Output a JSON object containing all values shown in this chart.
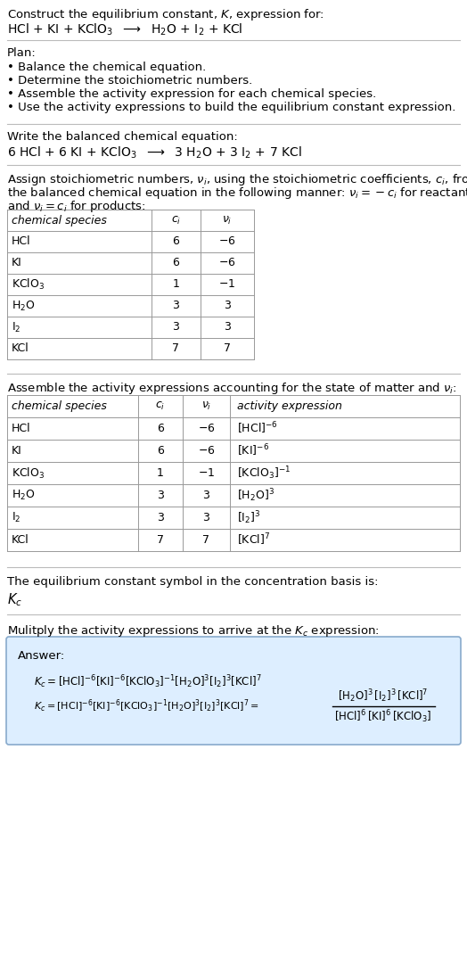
{
  "title_line1": "Construct the equilibrium constant, $K$, expression for:",
  "title_line2": "HCl + KI + KClO$_3$  $\\longrightarrow$  H$_2$O + I$_2$ + KCl",
  "plan_header": "Plan:",
  "plan_items": [
    "• Balance the chemical equation.",
    "• Determine the stoichiometric numbers.",
    "• Assemble the activity expression for each chemical species.",
    "• Use the activity expressions to build the equilibrium constant expression."
  ],
  "balanced_header": "Write the balanced chemical equation:",
  "balanced_eq": "6 HCl + 6 KI + KClO$_3$  $\\longrightarrow$  3 H$_2$O + 3 I$_2$ + 7 KCl",
  "stoich_intro1": "Assign stoichiometric numbers, $\\nu_i$, using the stoichiometric coefficients, $c_i$, from",
  "stoich_intro2": "the balanced chemical equation in the following manner: $\\nu_i = -c_i$ for reactants",
  "stoich_intro3": "and $\\nu_i = c_i$ for products:",
  "table1_headers": [
    "chemical species",
    "$c_i$",
    "$\\nu_i$"
  ],
  "table1_data": [
    [
      "HCl",
      "6",
      "$-6$"
    ],
    [
      "KI",
      "6",
      "$-6$"
    ],
    [
      "KClO$_3$",
      "1",
      "$-1$"
    ],
    [
      "H$_2$O",
      "3",
      "3"
    ],
    [
      "I$_2$",
      "3",
      "3"
    ],
    [
      "KCl",
      "7",
      "7"
    ]
  ],
  "activity_intro": "Assemble the activity expressions accounting for the state of matter and $\\nu_i$:",
  "table2_headers": [
    "chemical species",
    "$c_i$",
    "$\\nu_i$",
    "activity expression"
  ],
  "table2_data": [
    [
      "HCl",
      "6",
      "$-6$",
      "$[\\mathrm{HCl}]^{-6}$"
    ],
    [
      "KI",
      "6",
      "$-6$",
      "$[\\mathrm{KI}]^{-6}$"
    ],
    [
      "KClO$_3$",
      "1",
      "$-1$",
      "$[\\mathrm{KClO_3}]^{-1}$"
    ],
    [
      "H$_2$O",
      "3",
      "3",
      "$[\\mathrm{H_2O}]^{3}$"
    ],
    [
      "I$_2$",
      "3",
      "3",
      "$[\\mathrm{I_2}]^{3}$"
    ],
    [
      "KCl",
      "7",
      "7",
      "$[\\mathrm{KCl}]^{7}$"
    ]
  ],
  "kc_symbol_intro": "The equilibrium constant symbol in the concentration basis is:",
  "kc_symbol": "$K_c$",
  "multiply_intro": "Mulitply the activity expressions to arrive at the $K_c$ expression:",
  "bg_color": "#ffffff",
  "table_line_color": "#999999",
  "answer_box_facecolor": "#ddeeff",
  "answer_box_edgecolor": "#88aacc",
  "text_color": "#000000",
  "separator_color": "#bbbbbb"
}
